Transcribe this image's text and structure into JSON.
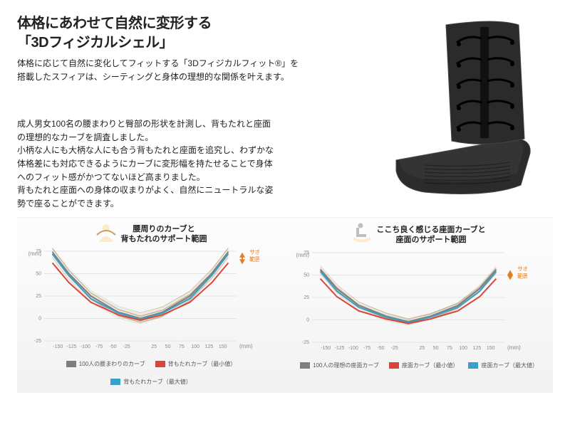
{
  "heading": {
    "line1": "体格にあわせて自然に変形する",
    "line2": "「3Dフィジカルシェル」"
  },
  "subheading": "体格に応じて自然に変化してフィットする「3Dフィジカルフィット®」を\n搭載したスフィアは、シーティングと身体の理想的な関係を叶えます。",
  "body": "成人男女100名の腰まわりと臀部の形状を計測し、背もたれと座面の理想的なカーブを調査しました。\n小柄な人にも大柄な人にも合う背もたれと座面を追究し、わずかな体格差にも対応できるようにカーブに変形幅を持たせることで身体へのフィット感がかつてないほど高まりました。\n背もたれと座面への身体の収まりがよく、自然にニュートラルな姿勢で座ることができます。",
  "shell": {
    "color_body": "#2b2b2b",
    "color_edge": "#444444",
    "highlight": "#6a6a6a"
  },
  "chart_common": {
    "xlim": [
      -175,
      175
    ],
    "xticks": [
      -150,
      -125,
      -100,
      -75,
      -50,
      -25,
      25,
      50,
      75,
      100,
      125,
      150
    ],
    "yticks": [
      -25,
      0,
      25,
      50,
      75
    ],
    "x_unit": "(mm)",
    "y_unit": "(mm)",
    "grid_color": "#e3e3e3",
    "bg_color": "#f7f7f7",
    "side_label": "サポート\n範囲",
    "side_label_color": "#e57e1f"
  },
  "chart_left": {
    "title": "腰周りのカーブと\n背もたれのサポート範囲",
    "ylim": [
      -25,
      75
    ],
    "legend": [
      {
        "label": "100人の腰まわりのカーブ",
        "color": "#7e7e7e"
      },
      {
        "label": "背もたれカーブ（最小値）",
        "color": "#d9453a"
      },
      {
        "label": "背もたれカーブ（最大値）",
        "color": "#3aa0c9"
      }
    ],
    "silhouette_color": "#fdeac8",
    "curves": {
      "gray": {
        "color": "#7e7e7e",
        "points": [
          [
            -160,
            74
          ],
          [
            -130,
            50
          ],
          [
            -90,
            25
          ],
          [
            -40,
            7
          ],
          [
            0,
            0
          ],
          [
            40,
            7
          ],
          [
            90,
            25
          ],
          [
            130,
            50
          ],
          [
            160,
            74
          ]
        ]
      },
      "red": {
        "color": "#d9453a",
        "points": [
          [
            -160,
            62
          ],
          [
            -130,
            40
          ],
          [
            -90,
            18
          ],
          [
            -40,
            4
          ],
          [
            0,
            -2
          ],
          [
            40,
            4
          ],
          [
            90,
            18
          ],
          [
            130,
            40
          ],
          [
            160,
            62
          ]
        ]
      },
      "blue": {
        "color": "#3aa0c9",
        "points": [
          [
            -160,
            72
          ],
          [
            -130,
            48
          ],
          [
            -90,
            22
          ],
          [
            -40,
            6
          ],
          [
            0,
            -1
          ],
          [
            40,
            6
          ],
          [
            90,
            22
          ],
          [
            130,
            48
          ],
          [
            160,
            72
          ]
        ]
      }
    },
    "cloud": {
      "color": "#8a6a2a",
      "n": 22,
      "jitter": 6
    }
  },
  "chart_right": {
    "title": "ここち良く感じる座面カーブと\n座面のサポート範囲",
    "ylim": [
      -25,
      75
    ],
    "legend": [
      {
        "label": "100人の理想の座面カーブ",
        "color": "#7e7e7e"
      },
      {
        "label": "座面カーブ（最小値）",
        "color": "#d9453a"
      },
      {
        "label": "座面カーブ（最大値）",
        "color": "#3aa0c9"
      }
    ],
    "silhouette_color": "#fdeac8",
    "curves": {
      "gray": {
        "color": "#7e7e7e",
        "points": [
          [
            -160,
            56
          ],
          [
            -130,
            35
          ],
          [
            -90,
            16
          ],
          [
            -40,
            4
          ],
          [
            0,
            -2
          ],
          [
            40,
            4
          ],
          [
            90,
            16
          ],
          [
            130,
            35
          ],
          [
            160,
            56
          ]
        ]
      },
      "red": {
        "color": "#d9453a",
        "points": [
          [
            -160,
            46
          ],
          [
            -130,
            26
          ],
          [
            -90,
            10
          ],
          [
            -40,
            1
          ],
          [
            0,
            -4
          ],
          [
            40,
            1
          ],
          [
            90,
            10
          ],
          [
            130,
            26
          ],
          [
            160,
            46
          ]
        ]
      },
      "blue": {
        "color": "#3aa0c9",
        "points": [
          [
            -160,
            54
          ],
          [
            -130,
            32
          ],
          [
            -90,
            14
          ],
          [
            -40,
            3
          ],
          [
            0,
            -3
          ],
          [
            40,
            3
          ],
          [
            90,
            14
          ],
          [
            130,
            32
          ],
          [
            160,
            54
          ]
        ]
      }
    },
    "cloud": {
      "color": "#8a6a2a",
      "n": 18,
      "jitter": 4
    }
  }
}
